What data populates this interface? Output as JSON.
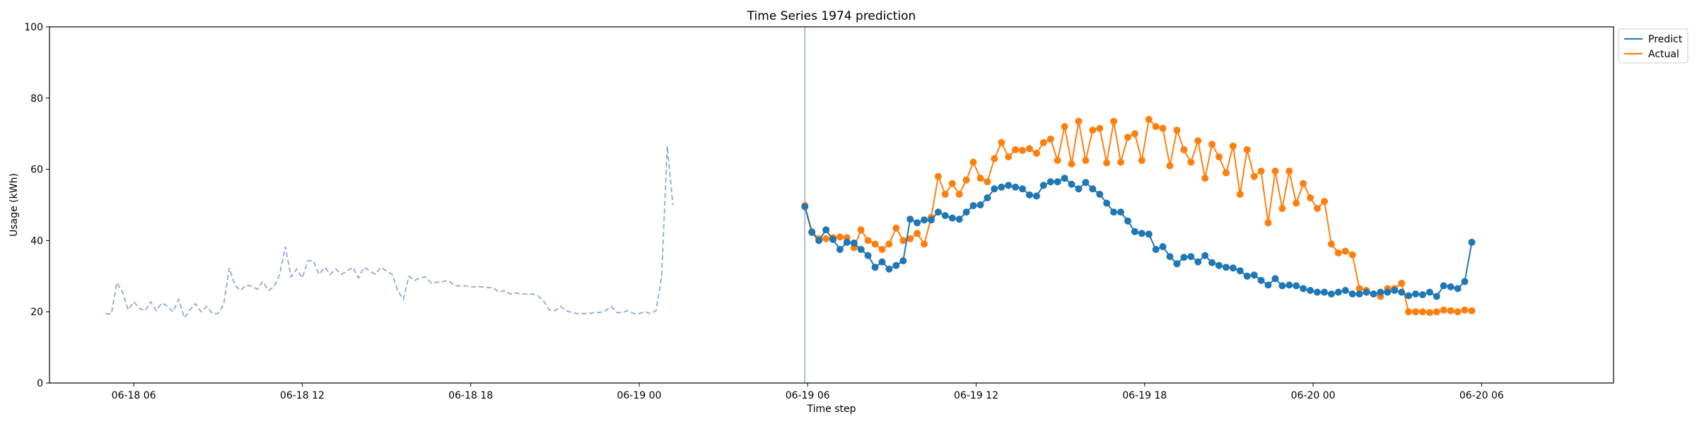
{
  "chart_data": {
    "type": "line",
    "title": "Time Series 1974 prediction",
    "xlabel": "Time step",
    "ylabel": "Usage (kWh)",
    "x_tick_labels": [
      "06-18 06",
      "06-18 12",
      "06-18 18",
      "06-19 00",
      "06-19 06",
      "06-19 12",
      "06-19 18",
      "06-20 00",
      "06-20 06"
    ],
    "y_tick_labels": [
      "0",
      "20",
      "40",
      "60",
      "80",
      "100"
    ],
    "ylim": [
      0,
      100
    ],
    "xlim_hours": [
      -3.0,
      52.7
    ],
    "x_tick_hours": [
      0,
      6,
      12,
      18,
      24,
      30,
      36,
      42,
      48
    ],
    "grid": false,
    "legend": {
      "placement": "top-right outside",
      "entries": [
        "Predict",
        "Actual"
      ]
    },
    "forecast_start_hour": 23.9,
    "history": {
      "start_hour": -1.0,
      "step_hours": 0.2,
      "color": "#8fa9cc",
      "values": [
        19.5,
        19.3,
        28.2,
        25.5,
        20.5,
        22.8,
        21.0,
        20.3,
        22.8,
        20.3,
        22.5,
        21.5,
        20.0,
        23.5,
        18.3,
        20.5,
        22.3,
        20.0,
        21.5,
        19.5,
        19.5,
        22.0,
        32.3,
        27.5,
        26.0,
        27.5,
        27.2,
        26.3,
        28.5,
        26.0,
        27.0,
        30.5,
        38.3,
        29.8,
        32.0,
        29.5,
        34.3,
        34.3,
        30.5,
        32.5,
        30.5,
        32.0,
        30.5,
        31.5,
        32.5,
        29.5,
        32.5,
        31.5,
        30.5,
        32.5,
        31.5,
        30.5,
        26.0,
        23.5,
        30.0,
        28.8,
        29.5,
        29.8,
        28.0,
        28.3,
        28.5,
        28.8,
        27.5,
        27.2,
        27.3,
        27.0,
        27.0,
        27.0,
        26.8,
        26.8,
        25.5,
        26.0,
        25.0,
        25.3,
        25.0,
        25.0,
        25.0,
        24.5,
        23.0,
        20.5,
        20.3,
        21.5,
        20.3,
        19.8,
        19.5,
        19.5,
        19.5,
        19.8,
        19.8,
        20.3,
        21.5,
        19.8,
        19.8,
        20.3,
        19.5,
        19.5,
        20.0,
        19.5,
        20.3,
        30.0,
        66.5,
        50.0
      ]
    },
    "series": [
      {
        "name": "Predict",
        "color": "#1f77b4",
        "start_hour": 23.9,
        "step_hours": 0.25,
        "values": [
          49.5,
          42.3,
          40.0,
          43.0,
          40.3,
          37.5,
          39.5,
          39.3,
          37.5,
          35.8,
          32.5,
          34.0,
          32.0,
          33.0,
          34.3,
          46.0,
          45.0,
          45.8,
          45.8,
          48.0,
          47.0,
          46.3,
          46.0,
          48.0,
          49.8,
          50.0,
          52.0,
          54.5,
          55.0,
          55.5,
          55.0,
          54.5,
          52.8,
          52.5,
          55.5,
          56.5,
          56.5,
          57.5,
          55.8,
          54.5,
          56.3,
          54.5,
          53.0,
          50.5,
          48.0,
          48.0,
          45.5,
          42.5,
          42.0,
          41.8,
          37.5,
          38.3,
          35.5,
          33.5,
          35.3,
          35.5,
          34.0,
          35.8,
          33.8,
          33.0,
          32.5,
          32.3,
          31.5,
          30.0,
          30.3,
          28.8,
          27.5,
          29.3,
          27.3,
          27.5,
          27.3,
          26.5,
          26.0,
          25.5,
          25.5,
          25.0,
          25.5,
          26.0,
          25.0,
          25.0,
          25.5,
          25.0,
          25.5,
          25.5,
          26.0,
          25.5,
          24.5,
          25.0,
          24.8,
          25.5,
          24.3,
          27.3,
          27.0,
          26.5,
          28.5,
          39.5
        ]
      },
      {
        "name": "Actual",
        "color": "#ff7f0e",
        "start_hour": 23.9,
        "step_hours": 0.25,
        "values": [
          49.8,
          42.5,
          40.5,
          40.5,
          40.8,
          41.0,
          40.8,
          38.0,
          43.0,
          40.0,
          39.0,
          37.5,
          39.0,
          43.5,
          40.0,
          40.5,
          42.0,
          39.0,
          46.5,
          58.0,
          53.0,
          56.0,
          53.0,
          57.0,
          62.0,
          57.5,
          56.5,
          63.0,
          67.5,
          63.5,
          65.5,
          65.3,
          65.8,
          64.5,
          67.5,
          68.5,
          62.5,
          72.0,
          61.5,
          73.5,
          62.5,
          71.0,
          71.5,
          61.8,
          73.5,
          62.0,
          69.0,
          70.0,
          62.5,
          74.0,
          72.0,
          71.5,
          61.0,
          71.0,
          65.5,
          62.0,
          68.0,
          57.5,
          67.0,
          63.5,
          59.0,
          66.5,
          53.0,
          65.5,
          58.0,
          59.5,
          45.0,
          59.5,
          49.0,
          59.5,
          50.5,
          56.0,
          52.0,
          49.0,
          51.0,
          39.0,
          36.5,
          37.0,
          36.0,
          26.5,
          26.0,
          25.0,
          24.3,
          26.5,
          26.5,
          28.0,
          20.0,
          20.0,
          20.0,
          19.8,
          20.0,
          20.5,
          20.3,
          20.0,
          20.5,
          20.3
        ]
      }
    ]
  }
}
